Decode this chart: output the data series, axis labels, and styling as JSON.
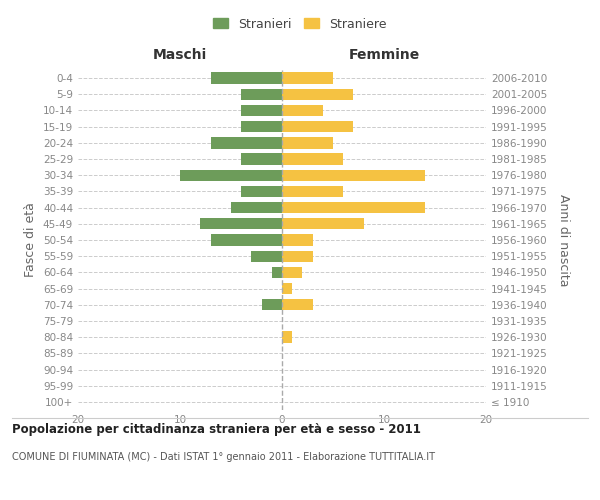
{
  "age_groups": [
    "100+",
    "95-99",
    "90-94",
    "85-89",
    "80-84",
    "75-79",
    "70-74",
    "65-69",
    "60-64",
    "55-59",
    "50-54",
    "45-49",
    "40-44",
    "35-39",
    "30-34",
    "25-29",
    "20-24",
    "15-19",
    "10-14",
    "5-9",
    "0-4"
  ],
  "birth_years": [
    "≤ 1910",
    "1911-1915",
    "1916-1920",
    "1921-1925",
    "1926-1930",
    "1931-1935",
    "1936-1940",
    "1941-1945",
    "1946-1950",
    "1951-1955",
    "1956-1960",
    "1961-1965",
    "1966-1970",
    "1971-1975",
    "1976-1980",
    "1981-1985",
    "1986-1990",
    "1991-1995",
    "1996-2000",
    "2001-2005",
    "2006-2010"
  ],
  "maschi": [
    0,
    0,
    0,
    0,
    0,
    0,
    2,
    0,
    1,
    3,
    7,
    8,
    5,
    4,
    10,
    4,
    7,
    4,
    4,
    4,
    7
  ],
  "femmine": [
    0,
    0,
    0,
    0,
    1,
    0,
    3,
    1,
    2,
    3,
    3,
    8,
    14,
    6,
    14,
    6,
    5,
    7,
    4,
    7,
    5
  ],
  "color_maschi": "#6d9c5a",
  "color_femmine": "#f5c242",
  "title": "Popolazione per cittadinanza straniera per età e sesso - 2011",
  "subtitle": "COMUNE DI FIUMINATA (MC) - Dati ISTAT 1° gennaio 2011 - Elaborazione TUTTITALIA.IT",
  "xlabel_left": "Maschi",
  "xlabel_right": "Femmine",
  "ylabel_left": "Fasce di età",
  "ylabel_right": "Anni di nascita",
  "legend_maschi": "Stranieri",
  "legend_femmine": "Straniere",
  "xlim": 20,
  "bg_color": "#ffffff",
  "grid_color": "#cccccc",
  "axis_label_color": "#666666",
  "tick_color": "#888888"
}
